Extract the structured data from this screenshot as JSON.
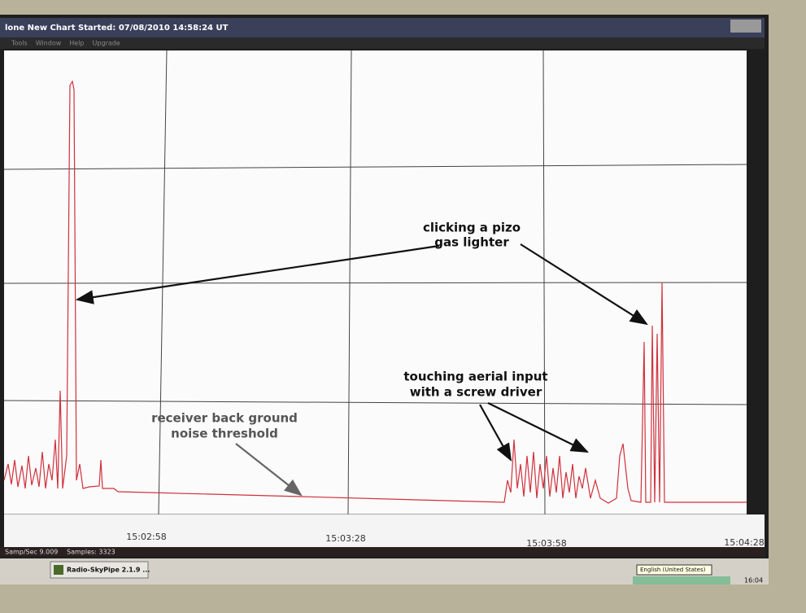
{
  "window": {
    "title": "lone New Chart Started: 07/08/2010 14:58:24 UT",
    "menu": [
      "Tools",
      "Window",
      "Help",
      "Upgrade"
    ]
  },
  "chart": {
    "x_labels": [
      "15:02:58",
      "15:03:28",
      "15:03:58",
      "15:04:28"
    ],
    "annotations": [
      {
        "lines": [
          "clicking a pizo",
          "gas lighter"
        ]
      },
      {
        "lines": [
          "touching aerial input",
          "with a screw driver"
        ]
      },
      {
        "lines": [
          "receiver back ground",
          "noise threshold"
        ]
      }
    ]
  },
  "status": {
    "rate": "Samp/Sec 9.009",
    "samples": "Samples: 3323"
  },
  "taskbar": {
    "app": "Radio-SkyPipe 2.1.9 ...",
    "tooltip": "English (United States)",
    "clock": "16:04"
  }
}
